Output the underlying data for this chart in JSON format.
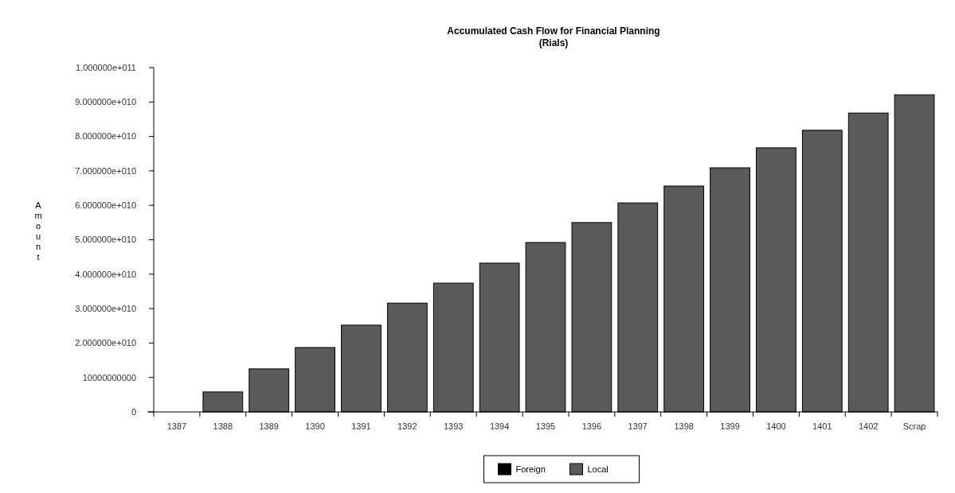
{
  "chart_data": {
    "type": "bar",
    "title": "Accumulated Cash Flow for Financial Planning",
    "subtitle": "(Rials)",
    "ylabel": "Amount",
    "stacked": true,
    "legend": "bottom",
    "grid": false,
    "categories": [
      "1387",
      "1388",
      "1389",
      "1390",
      "1391",
      "1392",
      "1393",
      "1394",
      "1395",
      "1396",
      "1397",
      "1398",
      "1399",
      "1400",
      "1401",
      "1402",
      "Scrap"
    ],
    "series": [
      {
        "name": "Foreign",
        "color": "#000000",
        "values": [
          0,
          0,
          0,
          0,
          0,
          0,
          0,
          0,
          0,
          0,
          0,
          0,
          0,
          0,
          0,
          0,
          0
        ]
      },
      {
        "name": "Local",
        "color": "#5a5a5a",
        "values": [
          0,
          5800000000.0,
          12500000000.0,
          18700000000.0,
          25200000000.0,
          31600000000.0,
          37400000000.0,
          43200000000.0,
          49200000000.0,
          55000000000.0,
          60700000000.0,
          65600000000.0,
          70900000000.0,
          76700000000.0,
          81800000000.0,
          86800000000.0,
          92100000000.0
        ]
      }
    ],
    "ylim": [
      0,
      100000000000.0
    ],
    "yticks": [
      0,
      {
        "value": 10000000000,
        "label": "10000000000"
      },
      {
        "value": 20000000000.0,
        "label": "2.000000e+010"
      },
      {
        "value": 30000000000.0,
        "label": "3.000000e+010"
      },
      {
        "value": 40000000000.0,
        "label": "4.000000e+010"
      },
      {
        "value": 50000000000.0,
        "label": "5.000000e+010"
      },
      {
        "value": 60000000000.0,
        "label": "6.000000e+010"
      },
      {
        "value": 70000000000.0,
        "label": "7.000000e+010"
      },
      {
        "value": 80000000000.0,
        "label": "8.000000e+010"
      },
      {
        "value": 90000000000.0,
        "label": "9.000000e+010"
      },
      {
        "value": 100000000000.0,
        "label": "1.000000e+011"
      }
    ]
  }
}
